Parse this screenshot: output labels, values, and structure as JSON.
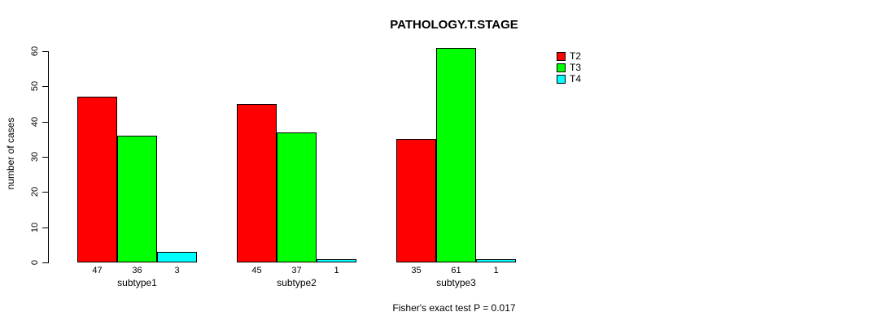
{
  "chart_data": {
    "type": "bar",
    "title": "PATHOLOGY.T.STAGE",
    "xlabel": "",
    "ylabel": "number of cases",
    "annotation": "Fisher's exact test P = 0.017",
    "categories": [
      "subtype1",
      "subtype2",
      "subtype3"
    ],
    "series": [
      {
        "name": "T2",
        "color": "#ff0000",
        "values": [
          47,
          45,
          35
        ]
      },
      {
        "name": "T3",
        "color": "#00ff00",
        "values": [
          36,
          37,
          61
        ]
      },
      {
        "name": "T4",
        "color": "#00ffff",
        "values": [
          3,
          1,
          1
        ]
      }
    ],
    "ylim": [
      0,
      60
    ],
    "yticks": [
      0,
      10,
      20,
      30,
      40,
      50,
      60
    ],
    "grid": false,
    "legend_position": "top-right",
    "bar_labels": true,
    "bar_border_color": "#000000",
    "background_color": "#ffffff"
  }
}
